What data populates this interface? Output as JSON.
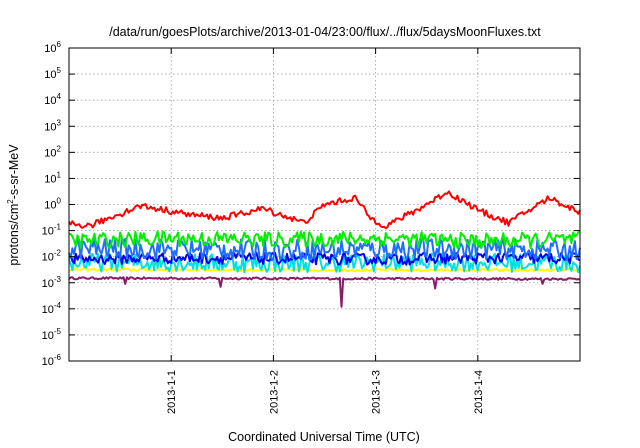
{
  "chart_data": {
    "type": "line",
    "title": "/data/run/goesPlots/archive/2013-01-04/23:00/flux/../flux/5daysMoonFluxes.txt",
    "xlabel": "Coordinated Universal Time (UTC)",
    "ylabel": {
      "pre": "protons/cm",
      "sup": "2",
      "post": "-s-sr-MeV"
    },
    "x_range_days": [
      0,
      5
    ],
    "x_ticks": [
      {
        "label": "2013-1-1",
        "day": 1
      },
      {
        "label": "2013-1-2",
        "day": 2
      },
      {
        "label": "2013-1-3",
        "day": 3
      },
      {
        "label": "2013-1-4",
        "day": 4
      }
    ],
    "y_scale": "log",
    "y_range_exp": [
      -6,
      6
    ],
    "y_ticks": [
      {
        "base": "10",
        "exp": "-6"
      },
      {
        "base": "10",
        "exp": "-5"
      },
      {
        "base": "10",
        "exp": "-4"
      },
      {
        "base": "10",
        "exp": "-3"
      },
      {
        "base": "10",
        "exp": "-2"
      },
      {
        "base": "10",
        "exp": "-1"
      },
      {
        "base": "10",
        "exp": "0"
      },
      {
        "base": "10",
        "exp": "1"
      },
      {
        "base": "10",
        "exp": "2"
      },
      {
        "base": "10",
        "exp": "3"
      },
      {
        "base": "10",
        "exp": "4"
      },
      {
        "base": "10",
        "exp": "5"
      },
      {
        "base": "10",
        "exp": "6"
      }
    ],
    "grid": true,
    "series": [
      {
        "color": "#8b1a6b",
        "base": [
          [
            0,
            0.0015
          ],
          [
            5,
            0.0014
          ]
        ],
        "jitter": 0.04,
        "dips": [
          [
            0.55,
            0.0009
          ],
          [
            1.48,
            0.0007
          ],
          [
            2.66,
            0.00012
          ],
          [
            3.58,
            0.0006
          ],
          [
            4.63,
            0.0009
          ]
        ]
      },
      {
        "color": "#ffff00",
        "base": [
          [
            0,
            0.0032
          ],
          [
            5,
            0.003
          ]
        ],
        "jitter": 0.05,
        "dips": []
      },
      {
        "color": "#00e0e0",
        "base": [
          [
            0,
            0.006
          ],
          [
            1,
            0.006
          ],
          [
            2,
            0.0055
          ],
          [
            3,
            0.006
          ],
          [
            4,
            0.006
          ],
          [
            5,
            0.0055
          ]
        ],
        "jitter": 0.35,
        "dips": []
      },
      {
        "color": "#0000ee",
        "base": [
          [
            0,
            0.008
          ],
          [
            1,
            0.009
          ],
          [
            2,
            0.0085
          ],
          [
            3,
            0.008
          ],
          [
            4,
            0.009
          ],
          [
            5,
            0.0085
          ]
        ],
        "jitter": 0.22,
        "dips": []
      },
      {
        "color": "#1f6fff",
        "base": [
          [
            0,
            0.02
          ],
          [
            1,
            0.02
          ],
          [
            2,
            0.018
          ],
          [
            3,
            0.02
          ],
          [
            4,
            0.02
          ],
          [
            5,
            0.018
          ]
        ],
        "jitter": 0.4,
        "dips": []
      },
      {
        "color": "#00ee00",
        "base": [
          [
            0,
            0.04
          ],
          [
            1,
            0.05
          ],
          [
            2,
            0.045
          ],
          [
            3,
            0.05
          ],
          [
            4,
            0.04
          ],
          [
            5,
            0.045
          ]
        ],
        "jitter": 0.3,
        "dips": []
      },
      {
        "color": "#ff0000",
        "base": [
          [
            0,
            0.18
          ],
          [
            0.2,
            0.15
          ],
          [
            0.7,
            0.9
          ],
          [
            1.2,
            0.4
          ],
          [
            1.5,
            0.3
          ],
          [
            1.9,
            0.7
          ],
          [
            2.3,
            0.2
          ],
          [
            2.5,
            1.0
          ],
          [
            2.8,
            1.8
          ],
          [
            2.95,
            0.3
          ],
          [
            3.1,
            0.15
          ],
          [
            3.4,
            0.6
          ],
          [
            3.7,
            3.0
          ],
          [
            4.05,
            0.5
          ],
          [
            4.3,
            0.2
          ],
          [
            4.7,
            1.8
          ],
          [
            5,
            0.5
          ]
        ],
        "jitter": 0.12,
        "dips": []
      }
    ]
  }
}
